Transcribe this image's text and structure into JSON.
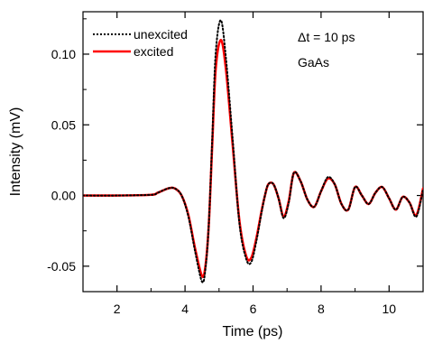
{
  "chart_data": {
    "type": "line",
    "title": "",
    "xlabel": "Time (ps)",
    "ylabel": "Intensity (mV)",
    "xlim": [
      1.0,
      11.0
    ],
    "ylim": [
      -0.068,
      0.13
    ],
    "xticks": [
      2,
      4,
      6,
      8,
      10
    ],
    "yticks": [
      -0.05,
      0.0,
      0.05,
      0.1
    ],
    "ytick_labels": [
      "-0.05",
      "0.00",
      "0.05",
      "0.10"
    ],
    "xtick_labels": [
      "2",
      "4",
      "6",
      "8",
      "10"
    ],
    "grid": false,
    "legend_position": "top-left",
    "annotations": [
      "Δt = 10 ps",
      "GaAs"
    ],
    "series": [
      {
        "name": "unexcited",
        "style": "dotted",
        "color": "#000000",
        "x": [
          1.0,
          2.0,
          3.0,
          3.2,
          3.5,
          3.7,
          3.9,
          4.1,
          4.3,
          4.5,
          4.6,
          4.7,
          4.8,
          4.9,
          5.05,
          5.2,
          5.4,
          5.6,
          5.8,
          5.95,
          6.1,
          6.25,
          6.35,
          6.45,
          6.6,
          6.75,
          6.9,
          7.05,
          7.2,
          7.4,
          7.6,
          7.8,
          8.0,
          8.2,
          8.4,
          8.6,
          8.8,
          9.0,
          9.2,
          9.4,
          9.6,
          9.8,
          10.0,
          10.2,
          10.4,
          10.6,
          10.8,
          11.0
        ],
        "y": [
          0.0,
          0.0,
          0.0005,
          0.002,
          0.005,
          0.005,
          0.0,
          -0.015,
          -0.04,
          -0.061,
          -0.052,
          -0.02,
          0.04,
          0.1,
          0.124,
          0.098,
          0.04,
          -0.02,
          -0.045,
          -0.047,
          -0.032,
          -0.012,
          0.0,
          0.008,
          0.008,
          -0.002,
          -0.016,
          -0.005,
          0.016,
          0.01,
          -0.003,
          -0.008,
          0.003,
          0.013,
          0.008,
          -0.006,
          -0.01,
          0.006,
          0.0,
          -0.006,
          0.002,
          0.006,
          -0.002,
          -0.01,
          -0.001,
          -0.005,
          -0.015,
          0.004
        ]
      },
      {
        "name": "excited",
        "style": "solid",
        "color": "#ff0000",
        "x": [
          1.0,
          2.0,
          3.0,
          3.2,
          3.5,
          3.7,
          3.9,
          4.1,
          4.3,
          4.5,
          4.6,
          4.7,
          4.8,
          4.9,
          5.05,
          5.2,
          5.4,
          5.6,
          5.8,
          5.95,
          6.1,
          6.25,
          6.35,
          6.45,
          6.6,
          6.75,
          6.9,
          7.05,
          7.2,
          7.4,
          7.6,
          7.8,
          8.0,
          8.2,
          8.4,
          8.6,
          8.8,
          9.0,
          9.2,
          9.4,
          9.6,
          9.8,
          10.0,
          10.2,
          10.4,
          10.6,
          10.8,
          11.0
        ],
        "y": [
          0.0,
          0.0,
          0.0005,
          0.002,
          0.005,
          0.005,
          0.0,
          -0.014,
          -0.038,
          -0.057,
          -0.05,
          -0.02,
          0.036,
          0.089,
          0.11,
          0.09,
          0.036,
          -0.018,
          -0.043,
          -0.044,
          -0.03,
          -0.011,
          0.0,
          0.008,
          0.008,
          -0.002,
          -0.015,
          -0.004,
          0.016,
          0.01,
          -0.003,
          -0.008,
          0.003,
          0.012,
          0.008,
          -0.006,
          -0.01,
          0.006,
          0.0,
          -0.006,
          0.002,
          0.006,
          -0.002,
          -0.01,
          -0.001,
          -0.005,
          -0.014,
          0.005
        ]
      }
    ]
  }
}
